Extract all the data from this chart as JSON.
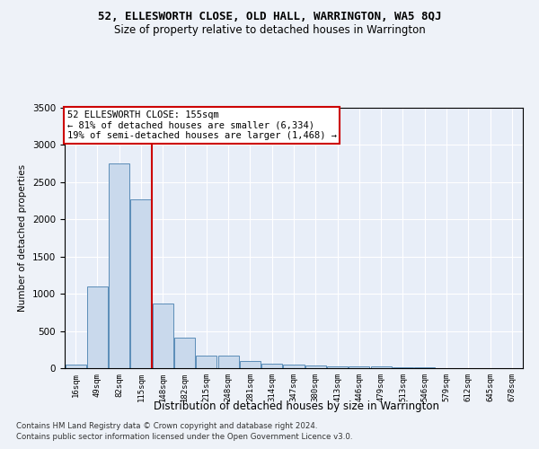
{
  "title1": "52, ELLESWORTH CLOSE, OLD HALL, WARRINGTON, WA5 8QJ",
  "title2": "Size of property relative to detached houses in Warrington",
  "xlabel": "Distribution of detached houses by size in Warrington",
  "ylabel": "Number of detached properties",
  "bar_labels": [
    "16sqm",
    "49sqm",
    "82sqm",
    "115sqm",
    "148sqm",
    "182sqm",
    "215sqm",
    "248sqm",
    "281sqm",
    "314sqm",
    "347sqm",
    "380sqm",
    "413sqm",
    "446sqm",
    "479sqm",
    "513sqm",
    "546sqm",
    "579sqm",
    "612sqm",
    "645sqm",
    "678sqm"
  ],
  "bar_values": [
    50,
    1100,
    2750,
    2270,
    870,
    410,
    175,
    175,
    95,
    65,
    50,
    40,
    30,
    25,
    20,
    10,
    10,
    5,
    5,
    5,
    5
  ],
  "bar_color": "#c9d9ec",
  "bar_edge_color": "#5b8db8",
  "vline_color": "#cc0000",
  "annotation_line1": "52 ELLESWORTH CLOSE: 155sqm",
  "annotation_line2": "← 81% of detached houses are smaller (6,334)",
  "annotation_line3": "19% of semi-detached houses are larger (1,468) →",
  "annotation_box_color": "#cc0000",
  "ylim": [
    0,
    3500
  ],
  "yticks": [
    0,
    500,
    1000,
    1500,
    2000,
    2500,
    3000,
    3500
  ],
  "footer1": "Contains HM Land Registry data © Crown copyright and database right 2024.",
  "footer2": "Contains public sector information licensed under the Open Government Licence v3.0.",
  "bg_color": "#eef2f8",
  "plot_bg_color": "#e8eef8"
}
